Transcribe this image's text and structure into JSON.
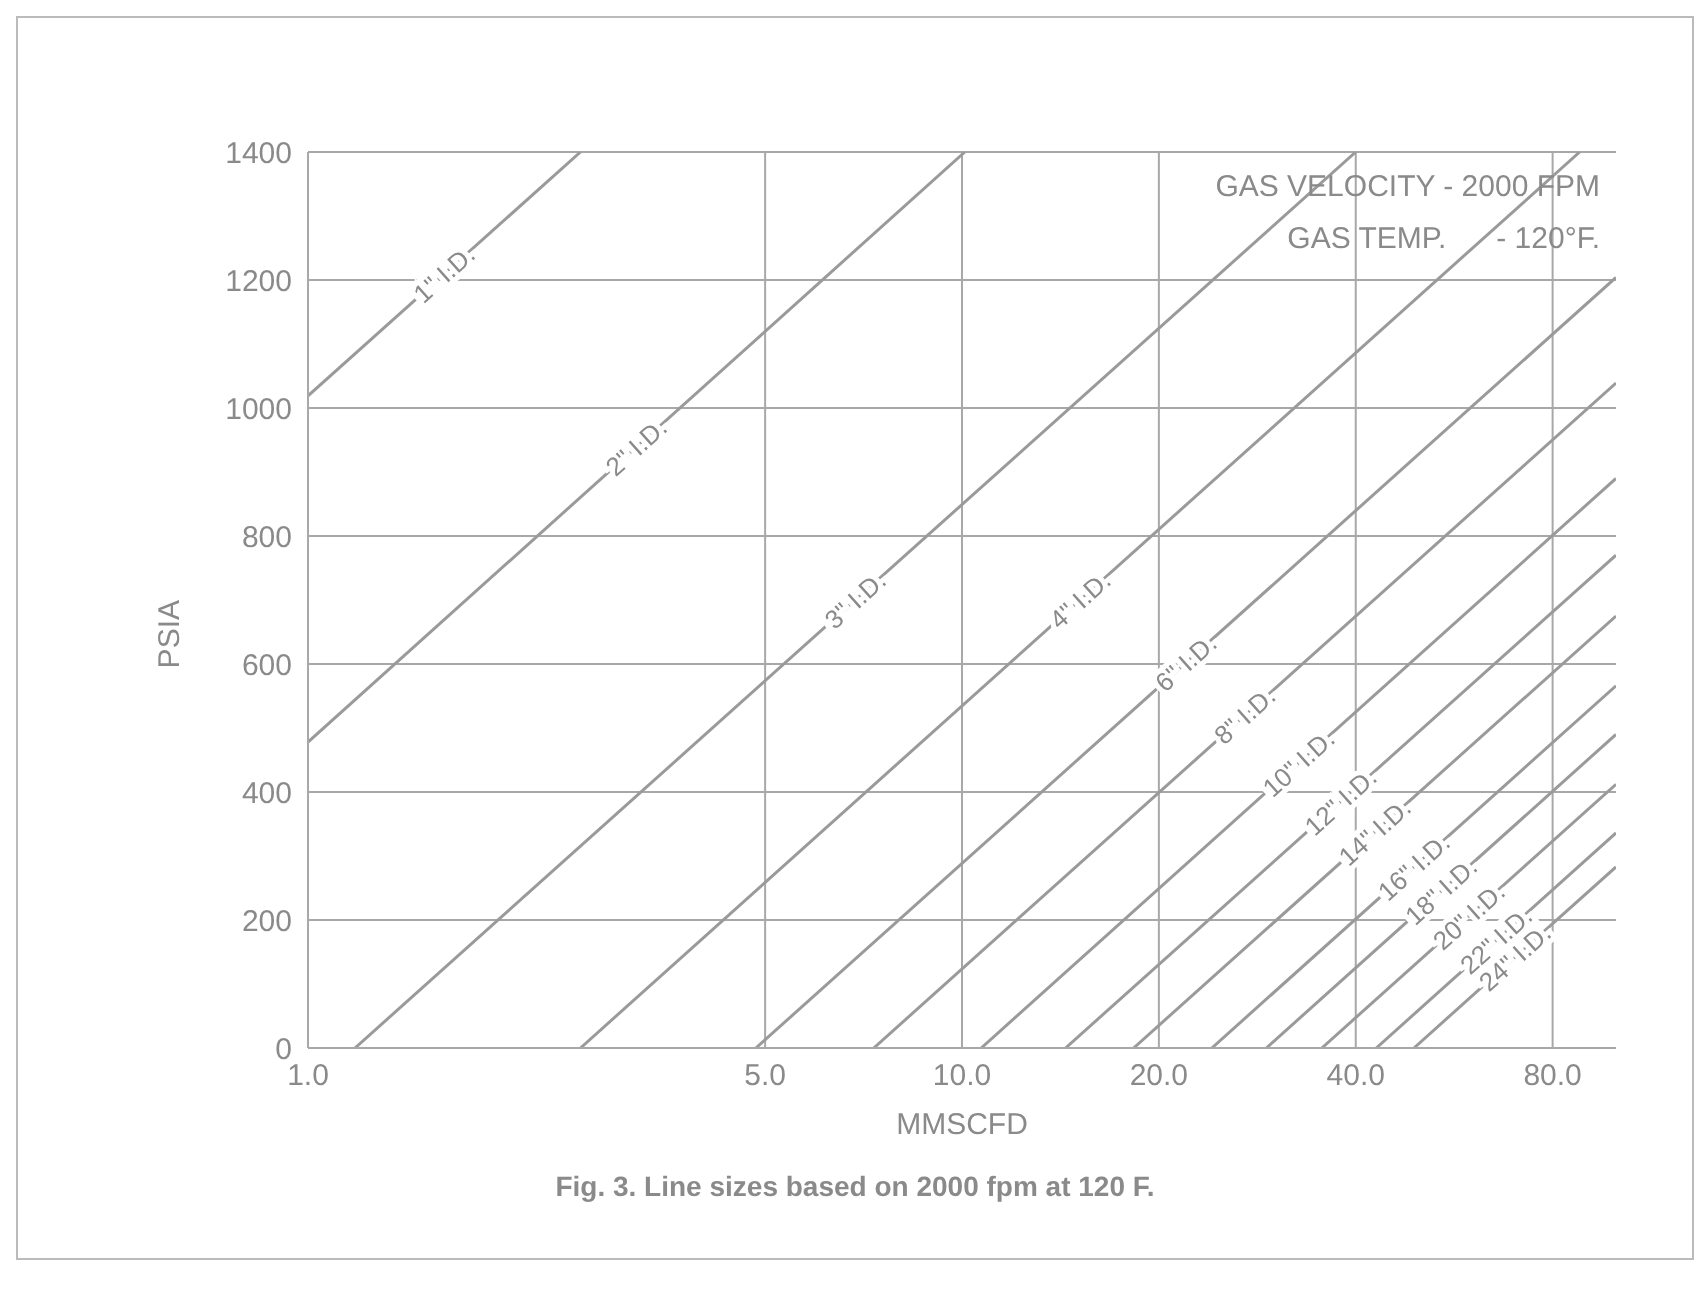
{
  "chart_data": {
    "type": "line",
    "xlabel": "MMSCFD",
    "ylabel": "PSIA",
    "log": "x",
    "grid": true,
    "marker": "none",
    "line_style": "solid",
    "xlim": [
      1,
      100
    ],
    "xticks": [
      {
        "value": 1,
        "label": "1.0"
      },
      {
        "value": 5,
        "label": "5.0"
      },
      {
        "value": 10,
        "label": "10.0"
      },
      {
        "value": 20,
        "label": "20.0"
      },
      {
        "value": 40,
        "label": "40.0"
      },
      {
        "value": 80,
        "label": "80.0"
      }
    ],
    "ylim": [
      0,
      1400
    ],
    "yticks": [
      0,
      200,
      400,
      600,
      800,
      1000,
      1200,
      1400
    ],
    "series": [
      {
        "name": "1\" I.D.",
        "color": "#9a9a9a",
        "x": [
          1,
          2.61
        ],
        "values": [
          1019,
          1400
        ]
      },
      {
        "name": "2\" I.D.",
        "color": "#9a9a9a",
        "x": [
          1,
          10.1
        ],
        "values": [
          478,
          1400
        ]
      },
      {
        "name": "3\" I.D.",
        "color": "#9a9a9a",
        "x": [
          1.18,
          40
        ],
        "values": [
          0,
          1400
        ]
      },
      {
        "name": "4\" I.D.",
        "color": "#9a9a9a",
        "x": [
          2.61,
          88
        ],
        "values": [
          0,
          1400
        ]
      },
      {
        "name": "6\" I.D.",
        "color": "#9a9a9a",
        "x": [
          4.84,
          100
        ],
        "values": [
          0,
          1204
        ]
      },
      {
        "name": "8\" I.D.",
        "color": "#9a9a9a",
        "x": [
          7.33,
          100
        ],
        "values": [
          0,
          1039
        ]
      },
      {
        "name": "10\" I.D.",
        "color": "#9a9a9a",
        "x": [
          10.7,
          100
        ],
        "values": [
          0,
          890
        ]
      },
      {
        "name": "12\" I.D.",
        "color": "#9a9a9a",
        "x": [
          14.4,
          100
        ],
        "values": [
          0,
          770
        ]
      },
      {
        "name": "14\" I.D.",
        "color": "#9a9a9a",
        "x": [
          18.3,
          100
        ],
        "values": [
          0,
          675
        ]
      },
      {
        "name": "16\" I.D.",
        "color": "#9a9a9a",
        "x": [
          24.1,
          100
        ],
        "values": [
          0,
          566
        ]
      },
      {
        "name": "18\" I.D.",
        "color": "#9a9a9a",
        "x": [
          29.2,
          100
        ],
        "values": [
          0,
          490
        ]
      },
      {
        "name": "20\" I.D.",
        "color": "#9a9a9a",
        "x": [
          35.5,
          100
        ],
        "values": [
          0,
          412
        ]
      },
      {
        "name": "22\" I.D.",
        "color": "#9a9a9a",
        "x": [
          43,
          100
        ],
        "values": [
          0,
          336
        ]
      },
      {
        "name": "24\" I.D.",
        "color": "#9a9a9a",
        "x": [
          49.1,
          100
        ],
        "values": [
          0,
          283
        ]
      }
    ],
    "annotations": [
      "GAS VELOCITY - 2000 FPM",
      "GAS TEMP.      - 120°F.",
      "Fig. 3. Line sizes based on 2000 fpm at 120 F."
    ]
  }
}
